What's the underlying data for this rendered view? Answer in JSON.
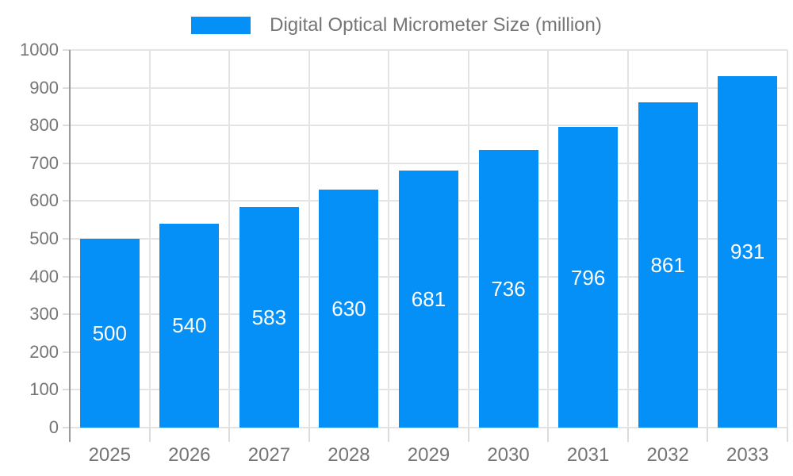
{
  "legend": {
    "label": "Digital Optical Micrometer Size (million)"
  },
  "colors": {
    "bar": "#0590f8",
    "grid": "#e4e4e4",
    "axis": "#9a9a9a",
    "tick": "#dcdcdc",
    "axis_label": "#757575",
    "bar_value_label": "#ffffff",
    "background": "#ffffff"
  },
  "chart_data": {
    "type": "bar",
    "title": "Digital Optical Micrometer Size (million)",
    "categories": [
      "2025",
      "2026",
      "2027",
      "2028",
      "2029",
      "2030",
      "2031",
      "2032",
      "2033"
    ],
    "values": [
      500,
      540,
      583,
      630,
      681,
      736,
      796,
      861,
      931
    ],
    "xlabel": "",
    "ylabel": "",
    "ylim": [
      0,
      1000
    ],
    "ytick_interval": 100,
    "ytick_labels": [
      "0",
      "100",
      "200",
      "300",
      "400",
      "500",
      "600",
      "700",
      "800",
      "900",
      "1000"
    ],
    "grid": true,
    "legend_position": "top-center",
    "bar_labels_inside": true
  }
}
